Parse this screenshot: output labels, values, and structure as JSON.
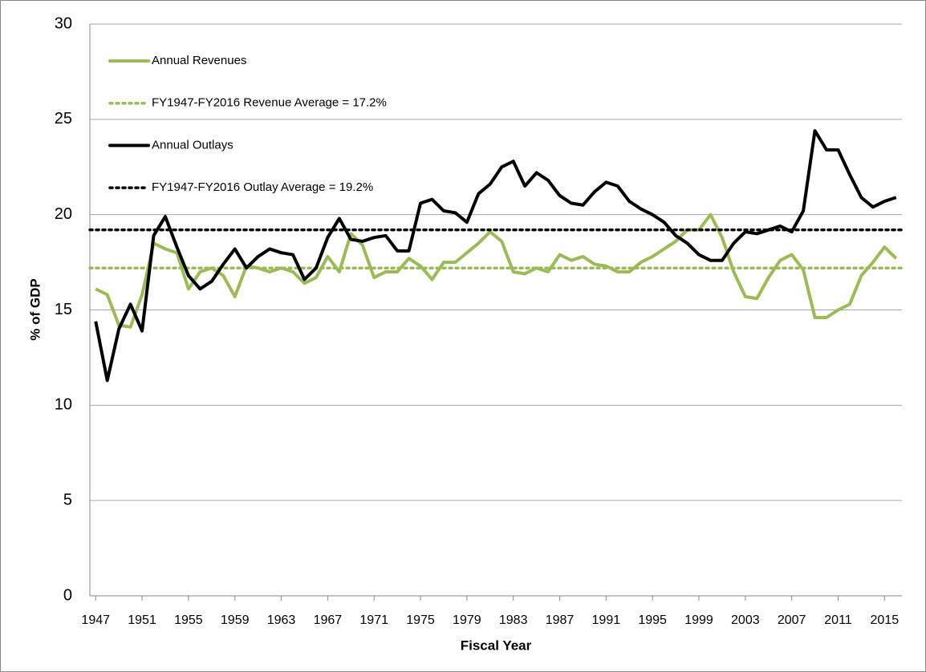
{
  "chart_data": {
    "type": "line",
    "xlabel": "Fiscal Year",
    "ylabel": "% of GDP",
    "x": [
      1947,
      1948,
      1949,
      1950,
      1951,
      1952,
      1953,
      1954,
      1955,
      1956,
      1957,
      1958,
      1959,
      1960,
      1961,
      1962,
      1963,
      1964,
      1965,
      1966,
      1967,
      1968,
      1969,
      1970,
      1971,
      1972,
      1973,
      1974,
      1975,
      1976,
      1977,
      1978,
      1979,
      1980,
      1981,
      1982,
      1983,
      1984,
      1985,
      1986,
      1987,
      1988,
      1989,
      1990,
      1991,
      1992,
      1993,
      1994,
      1995,
      1996,
      1997,
      1998,
      1999,
      2000,
      2001,
      2002,
      2003,
      2004,
      2005,
      2006,
      2007,
      2008,
      2009,
      2010,
      2011,
      2012,
      2013,
      2014,
      2015,
      2016
    ],
    "series": [
      {
        "name": "Annual Revenues",
        "color": "#9bbb59",
        "values": [
          16.1,
          15.8,
          14.2,
          14.1,
          15.8,
          18.5,
          18.2,
          18.0,
          16.1,
          17.0,
          17.2,
          16.8,
          15.7,
          17.3,
          17.2,
          17.0,
          17.2,
          17.0,
          16.4,
          16.7,
          17.8,
          17.0,
          19.0,
          18.4,
          16.7,
          17.0,
          17.0,
          17.7,
          17.3,
          16.6,
          17.5,
          17.5,
          18.0,
          18.5,
          19.1,
          18.6,
          17.0,
          16.9,
          17.2,
          17.0,
          17.9,
          17.6,
          17.8,
          17.4,
          17.3,
          17.0,
          17.0,
          17.5,
          17.8,
          18.2,
          18.6,
          19.2,
          19.2,
          20.0,
          18.8,
          17.0,
          15.7,
          15.6,
          16.7,
          17.6,
          17.9,
          17.1,
          14.6,
          14.6,
          15.0,
          15.3,
          16.8,
          17.5,
          18.3,
          17.7
        ]
      },
      {
        "name": "FY1947-FY2016 Revenue Average = 17.2%",
        "color": "#9bbb59",
        "value": 17.2,
        "dotted": true
      },
      {
        "name": "Annual Outlays",
        "color": "#000000",
        "values": [
          14.4,
          11.3,
          14.0,
          15.3,
          13.9,
          18.9,
          19.9,
          18.3,
          16.8,
          16.1,
          16.5,
          17.4,
          18.2,
          17.2,
          17.8,
          18.2,
          18.0,
          17.9,
          16.6,
          17.2,
          18.8,
          19.8,
          18.7,
          18.6,
          18.8,
          18.9,
          18.1,
          18.1,
          20.6,
          20.8,
          20.2,
          20.1,
          19.6,
          21.1,
          21.6,
          22.5,
          22.8,
          21.5,
          22.2,
          21.8,
          21.0,
          20.6,
          20.5,
          21.2,
          21.7,
          21.5,
          20.7,
          20.3,
          20.0,
          19.6,
          18.9,
          18.5,
          17.9,
          17.6,
          17.6,
          18.5,
          19.1,
          19.0,
          19.2,
          19.4,
          19.1,
          20.2,
          24.4,
          23.4,
          23.4,
          22.1,
          20.9,
          20.4,
          20.7,
          20.9
        ]
      },
      {
        "name": "FY1947-FY2016 Outlay Average = 19.2%",
        "color": "#000000",
        "value": 19.2,
        "dotted": true
      }
    ],
    "xlim": [
      1946.5,
      2016.5
    ],
    "xticks": [
      1947,
      1951,
      1955,
      1959,
      1963,
      1967,
      1971,
      1975,
      1979,
      1983,
      1987,
      1991,
      1995,
      1999,
      2003,
      2007,
      2011,
      2015
    ],
    "ylim": [
      0,
      30
    ],
    "yticks": [
      0,
      5,
      10,
      15,
      20,
      25,
      30
    ],
    "grid": true,
    "legend": "upper left"
  }
}
